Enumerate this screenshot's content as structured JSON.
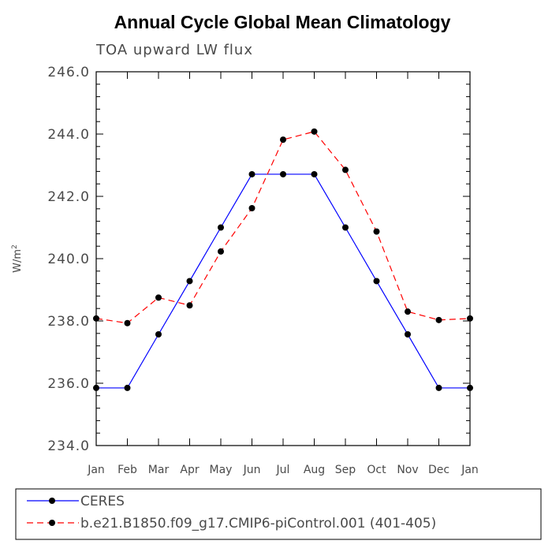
{
  "chart_data": {
    "type": "line",
    "title": "Annual Cycle Global Mean Climatology",
    "subtitle": "TOA upward LW flux",
    "xlabel": "",
    "ylabel": "W/m",
    "ylabel_superscript": "2",
    "ylim": [
      234.0,
      246.0
    ],
    "yticks": [
      "234.0",
      "236.0",
      "238.0",
      "240.0",
      "242.0",
      "244.0",
      "246.0"
    ],
    "ytick_values": [
      234,
      236,
      238,
      240,
      242,
      244,
      246
    ],
    "categories": [
      "Jan",
      "Feb",
      "Mar",
      "Apr",
      "May",
      "Jun",
      "Jul",
      "Aug",
      "Sep",
      "Oct",
      "Nov",
      "Dec",
      "Jan"
    ],
    "series": [
      {
        "name": "CERES",
        "color": "#0000ff",
        "dash": "solid",
        "values": [
          235.85,
          235.85,
          237.57,
          239.28,
          241.0,
          242.71,
          242.71,
          242.71,
          241.0,
          239.28,
          237.57,
          235.85,
          235.85
        ]
      },
      {
        "name": "b.e21.B1850.f09_g17.CMIP6-piControl.001 (401-405)",
        "color": "#ff0000",
        "dash": "dashed",
        "values": [
          238.08,
          237.93,
          238.75,
          238.5,
          240.23,
          241.62,
          243.82,
          244.08,
          242.85,
          240.87,
          238.3,
          238.03,
          238.08
        ]
      }
    ]
  }
}
